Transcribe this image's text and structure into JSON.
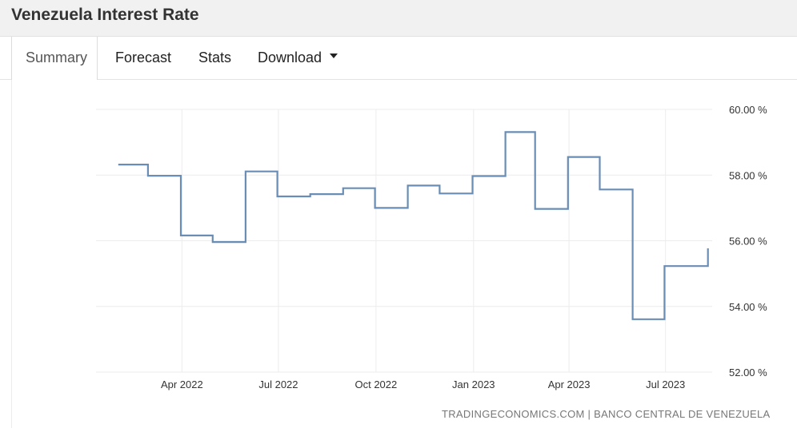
{
  "header": {
    "title": "Venezuela Interest Rate"
  },
  "tabs": [
    {
      "label": "Summary",
      "active": true
    },
    {
      "label": "Forecast"
    },
    {
      "label": "Stats"
    },
    {
      "label": "Download",
      "has_dropdown": true
    }
  ],
  "source": "TRADINGECONOMICS.COM | BANCO CENTRAL DE VENEZUELA",
  "colors": {
    "line": "#6a8db5",
    "grid": "#ececec",
    "header_bg": "#f1f1f1"
  },
  "chart_data": {
    "type": "line",
    "step": true,
    "title": "",
    "xlabel": "",
    "ylabel": "",
    "ylim": [
      52,
      60
    ],
    "y_ticks": [
      60,
      58,
      56,
      54,
      52
    ],
    "y_tick_labels": [
      "60.00 %",
      "58.00 %",
      "56.00 %",
      "54.00 %",
      "52.00 %"
    ],
    "y_axis_position": "right",
    "x_ticks": [
      "2022-04-01",
      "2022-07-01",
      "2022-10-01",
      "2023-01-01",
      "2023-04-01",
      "2023-07-01"
    ],
    "x_tick_labels": [
      "Apr 2022",
      "Jul 2022",
      "Oct 2022",
      "Jan 2023",
      "Apr 2023",
      "Jul 2023"
    ],
    "grid": true,
    "series": [
      {
        "x": [
          "2022-01-31",
          "2022-02-28",
          "2022-03-31",
          "2022-04-30",
          "2022-05-31",
          "2022-06-30",
          "2022-07-31",
          "2022-08-31",
          "2022-09-30",
          "2022-10-31",
          "2022-11-30",
          "2022-12-31",
          "2023-01-31",
          "2023-02-28",
          "2023-03-31",
          "2023-04-30",
          "2023-05-31",
          "2023-06-30",
          "2023-07-31",
          "2023-08-10"
        ],
        "y": [
          58.32,
          57.98,
          56.16,
          55.96,
          58.11,
          57.35,
          57.42,
          57.6,
          57.0,
          57.68,
          57.44,
          57.97,
          59.31,
          56.97,
          58.55,
          57.56,
          53.61,
          55.23,
          55.23,
          55.77
        ]
      }
    ]
  }
}
